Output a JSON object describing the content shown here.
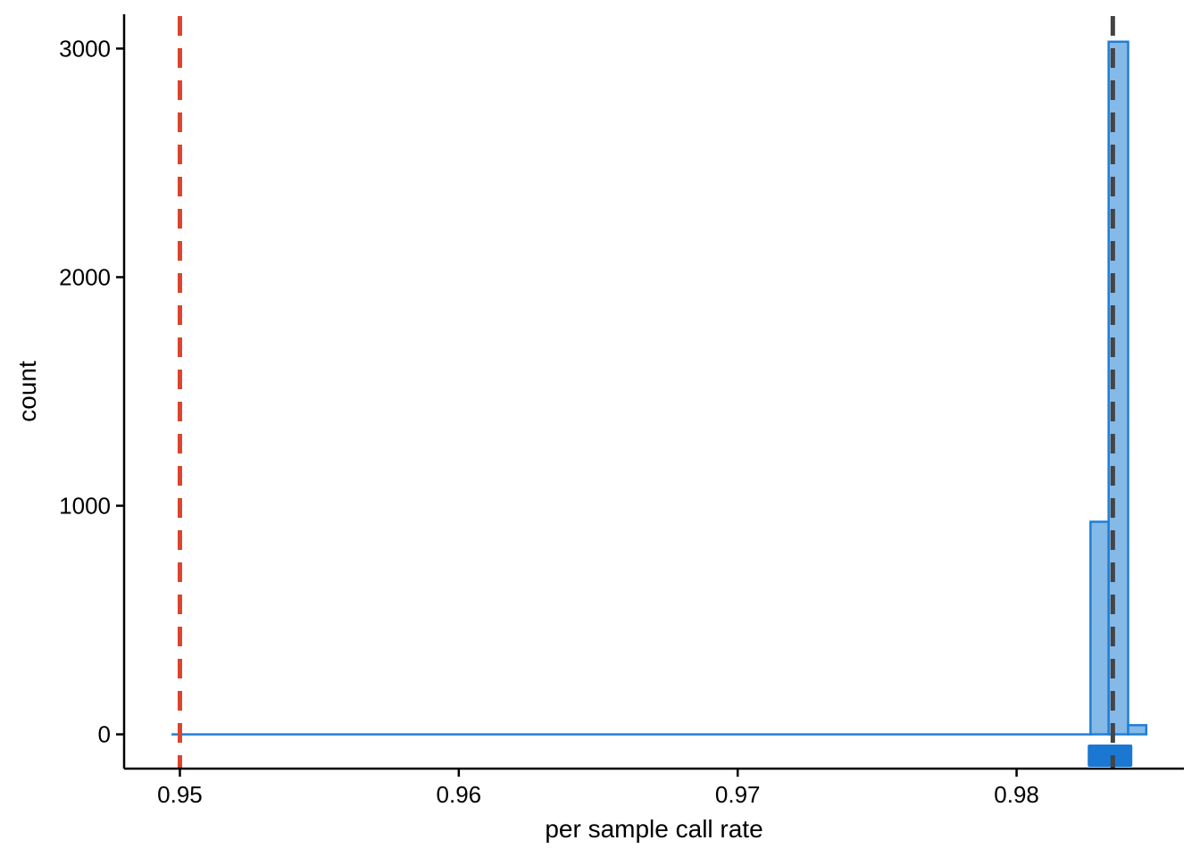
{
  "chart_data": {
    "type": "bar",
    "subtype": "histogram",
    "title": "",
    "xlabel": "per sample call rate",
    "ylabel": "count",
    "xlim": [
      0.948,
      0.986
    ],
    "ylim": [
      -150,
      3150
    ],
    "x_ticks": [
      {
        "value": 0.95,
        "label": "0.95"
      },
      {
        "value": 0.96,
        "label": "0.96"
      },
      {
        "value": 0.97,
        "label": "0.97"
      },
      {
        "value": 0.98,
        "label": "0.98"
      }
    ],
    "y_ticks": [
      {
        "value": 0,
        "label": "0"
      },
      {
        "value": 1000,
        "label": "1000"
      },
      {
        "value": 2000,
        "label": "2000"
      },
      {
        "value": 3000,
        "label": "3000"
      }
    ],
    "grid": false,
    "legend": "none",
    "bins": [
      {
        "x0": 0.98265,
        "x1": 0.9833,
        "count": 930
      },
      {
        "x0": 0.9833,
        "x1": 0.984,
        "count": 3030
      },
      {
        "x0": 0.984,
        "x1": 0.98465,
        "count": 40
      }
    ],
    "baseline": {
      "x0": 0.9497,
      "x1": 0.9827,
      "count": 0
    },
    "rug": {
      "x0": 0.98255,
      "x1": 0.98415
    },
    "reference_lines": [
      {
        "value": 0.95,
        "color": "#d9452e"
      },
      {
        "value": 0.98345,
        "color": "#444444"
      }
    ],
    "colors": {
      "bar_fill": "#85b9e8",
      "bar_stroke": "#1f7fd4",
      "rug": "#1a78d2",
      "axis": "#000000"
    }
  }
}
